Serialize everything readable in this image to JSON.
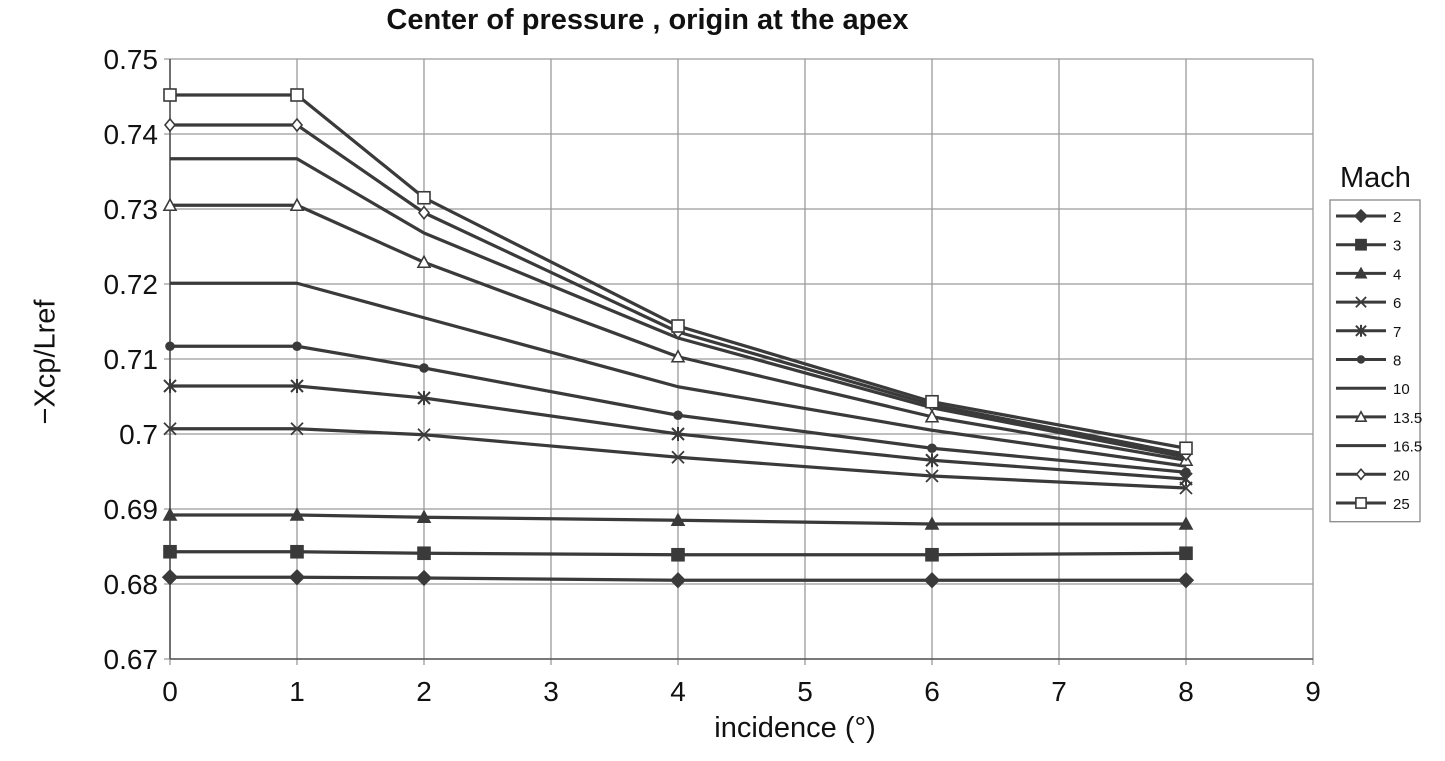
{
  "chart_data": {
    "type": "line",
    "title": "Center of pressure , origin at the apex",
    "xlabel": "incidence (°)",
    "ylabel": "−Xcp/Lref",
    "xlim": [
      0,
      9
    ],
    "ylim": [
      0.67,
      0.75
    ],
    "x_ticks": [
      "0",
      "1",
      "2",
      "3",
      "4",
      "5",
      "6",
      "7",
      "8",
      "9"
    ],
    "y_ticks": [
      "0.67",
      "0.68",
      "0.69",
      "0.7",
      "0.71",
      "0.72",
      "0.73",
      "0.74",
      "0.75"
    ],
    "grid": true,
    "legend": {
      "title": "Mach",
      "position": "right"
    },
    "x": [
      0,
      1,
      2,
      4,
      6,
      8
    ],
    "series": [
      {
        "name": "2",
        "marker": "diamond-filled",
        "values": [
          0.6809,
          0.6809,
          0.6808,
          0.6805,
          0.6805,
          0.6805
        ]
      },
      {
        "name": "3",
        "marker": "square-filled",
        "values": [
          0.6843,
          0.6843,
          0.6841,
          0.6839,
          0.6839,
          0.6841
        ]
      },
      {
        "name": "4",
        "marker": "triangle-filled",
        "values": [
          0.6892,
          0.6892,
          0.6889,
          0.6885,
          0.688,
          0.688
        ]
      },
      {
        "name": "6",
        "marker": "x",
        "values": [
          0.7007,
          0.7007,
          0.6999,
          0.6969,
          0.6944,
          0.6928
        ]
      },
      {
        "name": "7",
        "marker": "star",
        "values": [
          0.7064,
          0.7064,
          0.7048,
          0.7,
          0.6965,
          0.694
        ]
      },
      {
        "name": "8",
        "marker": "circle-filled",
        "values": [
          0.7117,
          0.7117,
          0.7088,
          0.7025,
          0.6981,
          0.6949
        ]
      },
      {
        "name": "10",
        "marker": "none",
        "values": [
          0.7201,
          0.7201,
          0.7155,
          0.7063,
          0.7005,
          0.6957
        ]
      },
      {
        "name": "13.5",
        "marker": "triangle-open",
        "values": [
          0.7305,
          0.7305,
          0.7229,
          0.7103,
          0.7023,
          0.6965
        ]
      },
      {
        "name": "16.5",
        "marker": "none",
        "values": [
          0.7367,
          0.7367,
          0.7268,
          0.7128,
          0.7035,
          0.6969
        ]
      },
      {
        "name": "20",
        "marker": "diamond-open",
        "values": [
          0.7412,
          0.7412,
          0.7295,
          0.7136,
          0.7039,
          0.6973
        ]
      },
      {
        "name": "25",
        "marker": "square-open",
        "values": [
          0.7452,
          0.7452,
          0.7315,
          0.7144,
          0.7043,
          0.6981
        ]
      }
    ],
    "colors": {
      "line": "#3a3a3a",
      "grid": "#9a9a9a",
      "axis": "#555555"
    }
  }
}
